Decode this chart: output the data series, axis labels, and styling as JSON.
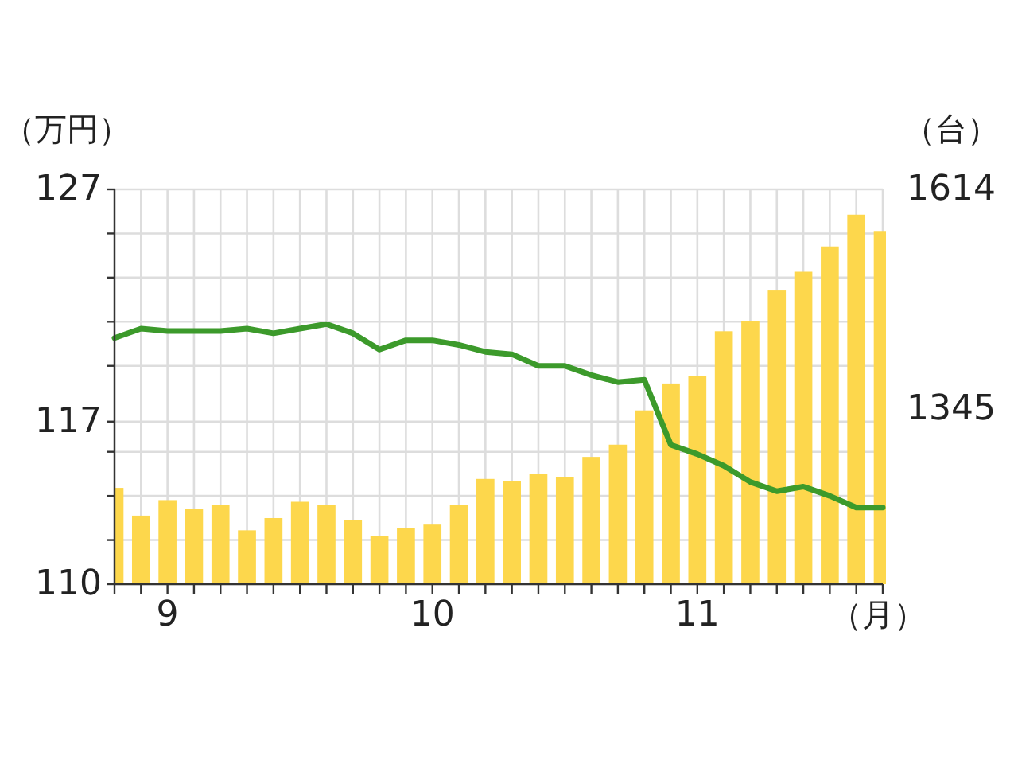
{
  "chart_data": {
    "type": "bar",
    "ylabel": "（万円）",
    "y2label": "（台）",
    "xlabel": "（月）",
    "categories": [
      null,
      null,
      "9",
      null,
      null,
      null,
      null,
      null,
      null,
      null,
      null,
      null,
      "10",
      null,
      null,
      null,
      null,
      null,
      null,
      null,
      null,
      null,
      "11",
      null,
      null,
      null,
      null,
      null,
      null,
      null
    ],
    "series": [
      {
        "axis": "y2",
        "color": "#fdd74c",
        "values": [
          1248,
          1214,
          1233,
          1222,
          1227,
          1196,
          1211,
          1231,
          1227,
          1209,
          1189,
          1199,
          1203,
          1227,
          1259,
          1256,
          1265,
          1261,
          1286,
          1301,
          1343,
          1376,
          1385,
          1440,
          1453,
          1490,
          1513,
          1544,
          1583,
          1563
        ]
      },
      {
        "type": "line",
        "axis": "y",
        "color": "#3c9a2b",
        "values": [
          120.6,
          121.0,
          120.9,
          120.9,
          120.9,
          121.0,
          120.8,
          121.0,
          121.2,
          120.8,
          120.1,
          120.5,
          120.5,
          120.3,
          120.0,
          119.9,
          119.4,
          119.4,
          119.0,
          118.7,
          118.8,
          116.0,
          115.6,
          115.1,
          114.4,
          114.0,
          114.2,
          113.8,
          113.3,
          113.3
        ]
      }
    ],
    "ylim": [
      110,
      127
    ],
    "yticks": [
      110,
      {
        "value": 111.9,
        "label": null
      },
      {
        "value": 113.8,
        "label": null
      },
      {
        "value": 115.7,
        "label": null
      },
      117,
      {
        "value": 119.4,
        "label": null
      },
      {
        "value": 121.3,
        "label": null
      },
      {
        "value": 123.2,
        "label": null
      },
      {
        "value": 125.1,
        "label": null
      },
      127
    ],
    "y2lim": [
      1130,
      1614
    ],
    "y2ticks": [
      1345,
      1614
    ],
    "grid": true,
    "line_style": "solid",
    "marker": "none"
  }
}
